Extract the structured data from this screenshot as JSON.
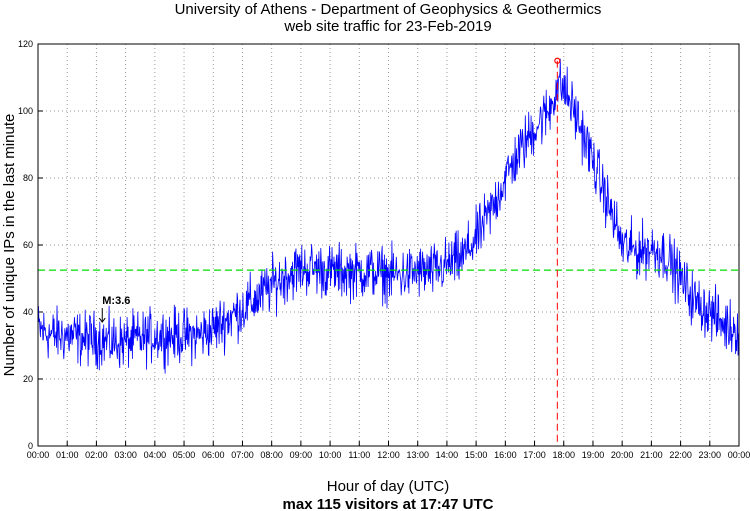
{
  "chart_data": {
    "type": "line",
    "title": "University of Athens - Department of Geophysics & Geothermics",
    "subtitle": "web site traffic for 23-Feb-2019",
    "xlabel": "Hour of day (UTC)",
    "ylabel": "Number of unique IPs in the last minute",
    "footer": "max 115 visitors at 17:47 UTC",
    "xlim": [
      0,
      24
    ],
    "ylim": [
      0,
      120
    ],
    "yticks": [
      0,
      20,
      40,
      60,
      80,
      100,
      120
    ],
    "xtick_labels": [
      "00:00",
      "01:00",
      "02:00",
      "03:00",
      "04:00",
      "05:00",
      "06:00",
      "07:00",
      "08:00",
      "09:00",
      "10:00",
      "11:00",
      "12:00",
      "13:00",
      "14:00",
      "15:00",
      "16:00",
      "17:00",
      "18:00",
      "19:00",
      "20:00",
      "21:00",
      "22:00",
      "23:00",
      "00:00"
    ],
    "grid": true,
    "series": [
      {
        "name": "unique IPs",
        "color": "#0000ff",
        "x": [
          0,
          0.5,
          1,
          1.5,
          2,
          2.5,
          3,
          3.5,
          4,
          4.5,
          5,
          5.5,
          6,
          6.5,
          7,
          7.5,
          8,
          8.5,
          9,
          9.5,
          10,
          10.5,
          11,
          11.5,
          12,
          12.5,
          13,
          13.5,
          14,
          14.5,
          15,
          15.5,
          16,
          16.5,
          17,
          17.5,
          17.78,
          18,
          18.5,
          19,
          19.5,
          20,
          20.5,
          21,
          21.5,
          22,
          22.5,
          23,
          23.5,
          24
        ],
        "y": [
          35,
          33,
          33,
          32,
          32,
          31,
          31,
          32,
          33,
          33,
          33,
          33,
          35,
          38,
          41,
          44,
          48,
          51,
          53,
          53,
          52,
          52,
          52,
          52,
          51,
          51,
          52,
          52,
          54,
          56,
          62,
          70,
          80,
          88,
          95,
          100,
          108,
          107,
          97,
          85,
          73,
          60,
          58,
          59,
          57,
          50,
          43,
          40,
          36,
          35
        ],
        "noise": 5
      }
    ],
    "mean_line": {
      "value": 52.5,
      "color": "#00dd00"
    },
    "max_marker": {
      "x": 17.78,
      "y": 115,
      "color": "#ff0000",
      "label": "max 115"
    },
    "annotation": {
      "text": "M:3.6",
      "x": 2.2,
      "y": 37
    }
  }
}
